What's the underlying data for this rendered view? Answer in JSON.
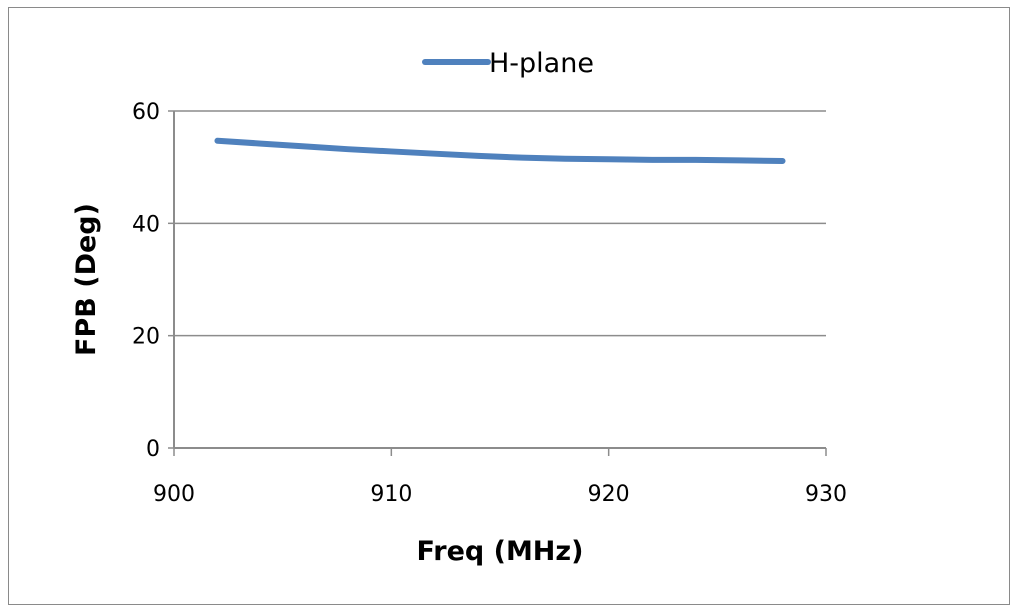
{
  "chart_data": {
    "type": "line",
    "xlabel": "Freq (MHz)",
    "ylabel": "FPB (Deg)",
    "xlim": [
      900,
      930
    ],
    "ylim": [
      0,
      60
    ],
    "xticks": [
      900,
      910,
      920,
      930
    ],
    "yticks": [
      0,
      20,
      40,
      60
    ],
    "grid": "horizontal",
    "legend": "top-center",
    "series": [
      {
        "name": "H-plane",
        "color": "#4f81bd",
        "x": [
          902,
          904,
          906,
          908,
          910,
          912,
          914,
          916,
          918,
          920,
          922,
          924,
          926,
          928
        ],
        "y": [
          54.7,
          54.2,
          53.7,
          53.2,
          52.8,
          52.4,
          52.0,
          51.7,
          51.5,
          51.4,
          51.3,
          51.3,
          51.2,
          51.1
        ]
      }
    ]
  }
}
